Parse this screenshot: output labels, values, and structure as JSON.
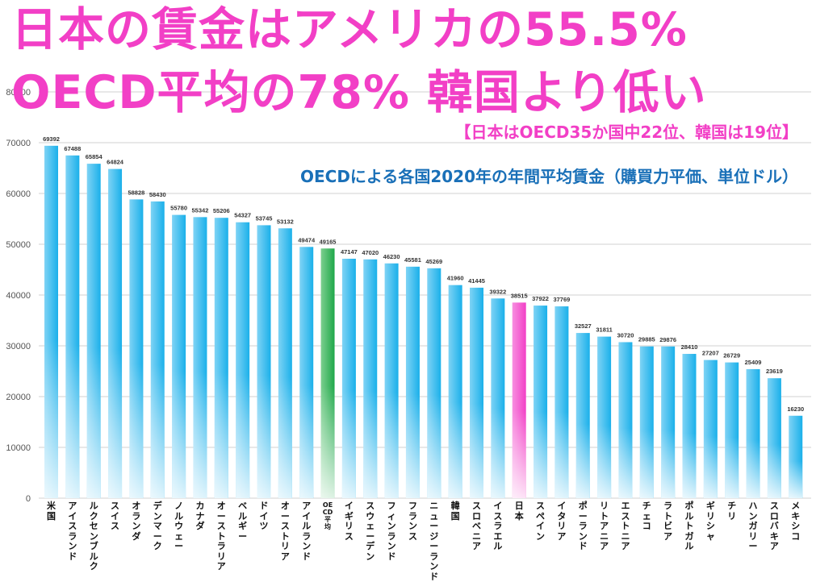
{
  "header": {
    "title_line1": "日本の賃金はアメリカの55.5%",
    "title_line2": "OECD平均の78% 韓国より低い",
    "subtitle_rank": "【日本はOECD35か国中22位、韓国は19位】",
    "subtitle_source": "OECDによる各国2020年の年間平均賃金（購買力平価、単位ドル）"
  },
  "colors": {
    "bar_default": "#1ab0ea",
    "bar_oecd": "#1fa84a",
    "bar_japan": "#f23fc6",
    "title_pink": "#f23fc6",
    "subtitle_blue": "#1a70b8",
    "grid": "#d0d0d0"
  },
  "chart_data": {
    "type": "bar",
    "title": "OECDによる各国2020年の年間平均賃金（購買力平価、単位ドル）",
    "xlabel": "",
    "ylabel": "",
    "ylim": [
      0,
      80000
    ],
    "yticks": [
      0,
      10000,
      20000,
      30000,
      40000,
      50000,
      60000,
      70000,
      80000
    ],
    "grid": true,
    "legend": "none",
    "categories": [
      "米国",
      "アイスランド",
      "ルクセンブルク",
      "スイス",
      "オランダ",
      "デンマーク",
      "ノルウェー",
      "カナダ",
      "オーストラリア",
      "ベルギー",
      "ドイツ",
      "オーストリア",
      "アイルランド",
      "OECD平均",
      "イギリス",
      "スウェーデン",
      "フィンランド",
      "フランス",
      "ニュージーランド",
      "韓国",
      "スロベニア",
      "イスラエル",
      "日本",
      "スペイン",
      "イタリア",
      "ポーランド",
      "リトアニア",
      "エストニア",
      "チェコ",
      "ラトビア",
      "ポルトガル",
      "ギリシャ",
      "チリ",
      "ハンガリー",
      "スロバキア",
      "メキシコ"
    ],
    "values": [
      69392,
      67488,
      65854,
      64824,
      58828,
      58430,
      55780,
      55342,
      55206,
      54327,
      53745,
      53132,
      49474,
      49165,
      47147,
      47020,
      46230,
      45581,
      45269,
      41960,
      41445,
      39322,
      38515,
      37922,
      37769,
      32527,
      31811,
      30720,
      29885,
      29876,
      28410,
      27207,
      26729,
      25409,
      23619,
      16230
    ],
    "highlights": {
      "OECD平均": "oecd",
      "日本": "japan"
    }
  }
}
